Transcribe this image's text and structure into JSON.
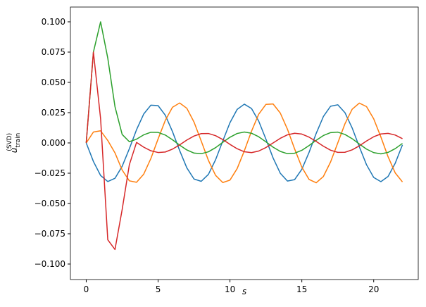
{
  "chart_data": {
    "type": "line",
    "x_label": "s",
    "y_label": {
      "base": "u",
      "sub": "train",
      "sup": "(SVD)"
    },
    "x": [
      0,
      0.5,
      1,
      1.5,
      2,
      2.5,
      3,
      3.5,
      4,
      4.5,
      5,
      5.5,
      6,
      6.5,
      7,
      7.5,
      8,
      8.5,
      9,
      9.5,
      10,
      10.5,
      11,
      11.5,
      12,
      12.5,
      13,
      13.5,
      14,
      14.5,
      15,
      15.5,
      16,
      16.5,
      17,
      17.5,
      18,
      18.5,
      19,
      19.5,
      20,
      20.5,
      21,
      21.5,
      22
    ],
    "series": [
      {
        "color": "#1f77b4",
        "values": [
          0,
          -0.0153,
          -0.0269,
          -0.0319,
          -0.0292,
          -0.0193,
          -0.0048,
          0.0109,
          0.0239,
          0.0312,
          0.0308,
          0.0229,
          0.0094,
          -0.0063,
          -0.0206,
          -0.0298,
          -0.0317,
          -0.026,
          -0.0139,
          0.0016,
          0.0167,
          0.0277,
          0.032,
          0.0284,
          0.018,
          0.0032,
          -0.0124,
          -0.025,
          -0.0315,
          -0.0303,
          -0.0218,
          -0.0079,
          0.0079,
          0.0218,
          0.0303,
          0.0315,
          0.025,
          0.0124,
          -0.0032,
          -0.018,
          -0.0285,
          -0.032,
          -0.0277,
          -0.0167,
          -0.0016
        ]
      },
      {
        "color": "#ff7f0e",
        "values": [
          0,
          0.009,
          0.01,
          0.002,
          -0.0082,
          -0.0224,
          -0.0313,
          -0.0325,
          -0.0258,
          -0.0128,
          0.0033,
          0.0186,
          0.0294,
          0.033,
          0.0286,
          0.0172,
          0.0016,
          -0.0144,
          -0.0268,
          -0.0327,
          -0.0307,
          -0.0212,
          -0.0065,
          0.0097,
          0.0237,
          0.0318,
          0.0322,
          0.0247,
          0.0113,
          -0.005,
          -0.02,
          -0.0301,
          -0.0329,
          -0.0277,
          -0.0157,
          0,
          0.0158,
          0.0278,
          0.0329,
          0.03,
          0.0199,
          0.0049,
          -0.0114,
          -0.0248,
          -0.0322
        ]
      },
      {
        "color": "#2ca02c",
        "values": [
          0,
          0.075,
          0.1,
          0.07,
          0.03,
          0.007,
          0.001,
          0.0031,
          0.0067,
          0.0088,
          0.0087,
          0.0065,
          0.0026,
          -0.0018,
          -0.0058,
          -0.0084,
          -0.0089,
          -0.0073,
          -0.0039,
          0.0005,
          0.0047,
          0.0078,
          0.009,
          0.008,
          0.0051,
          0.0009,
          -0.0035,
          -0.007,
          -0.0089,
          -0.0085,
          -0.0061,
          -0.0022,
          0.0022,
          0.0061,
          0.0085,
          0.0089,
          0.007,
          0.0035,
          -0.0009,
          -0.0051,
          -0.008,
          -0.009,
          -0.0078,
          -0.0047,
          -0.0004
        ]
      },
      {
        "color": "#d62728",
        "values": [
          0,
          0.075,
          0.02,
          -0.08,
          -0.088,
          -0.055,
          -0.018,
          0.0004,
          -0.0035,
          -0.0065,
          -0.0079,
          -0.0075,
          -0.0051,
          -0.0016,
          0.0024,
          0.0057,
          0.0077,
          0.0078,
          0.006,
          0.0028,
          -0.0012,
          -0.0048,
          -0.0073,
          -0.008,
          -0.0067,
          -0.0038,
          0,
          0.0038,
          0.0067,
          0.008,
          0.0073,
          0.0048,
          0.0012,
          -0.0027,
          -0.006,
          -0.0078,
          -0.0077,
          -0.0057,
          -0.0024,
          0.0016,
          0.0051,
          0.0074,
          0.0079,
          0.0065,
          0.0035
        ]
      }
    ],
    "xlim": [
      -1.1,
      23.1
    ],
    "ylim": [
      -0.1128,
      0.1122
    ],
    "xticks": [
      0,
      5,
      10,
      15,
      20
    ],
    "yticks": [
      {
        "value": -0.1,
        "label": "−0.100"
      },
      {
        "value": -0.075,
        "label": "−0.075"
      },
      {
        "value": -0.05,
        "label": "−0.050"
      },
      {
        "value": -0.025,
        "label": "−0.025"
      },
      {
        "value": 0,
        "label": "0.000"
      },
      {
        "value": 0.025,
        "label": "0.025"
      },
      {
        "value": 0.05,
        "label": "0.050"
      },
      {
        "value": 0.075,
        "label": "0.075"
      },
      {
        "value": 0.1,
        "label": "0.100"
      }
    ],
    "grid": false
  }
}
